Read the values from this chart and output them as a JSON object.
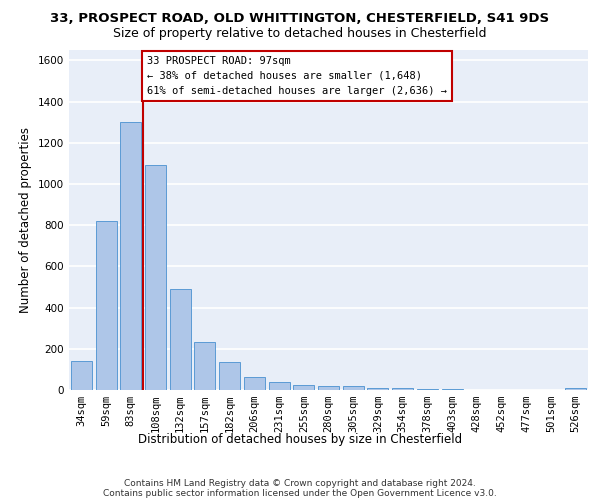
{
  "title_line1": "33, PROSPECT ROAD, OLD WHITTINGTON, CHESTERFIELD, S41 9DS",
  "title_line2": "Size of property relative to detached houses in Chesterfield",
  "xlabel": "Distribution of detached houses by size in Chesterfield",
  "ylabel": "Number of detached properties",
  "bar_labels": [
    "34sqm",
    "59sqm",
    "83sqm",
    "108sqm",
    "132sqm",
    "157sqm",
    "182sqm",
    "206sqm",
    "231sqm",
    "255sqm",
    "280sqm",
    "305sqm",
    "329sqm",
    "354sqm",
    "378sqm",
    "403sqm",
    "428sqm",
    "452sqm",
    "477sqm",
    "501sqm",
    "526sqm"
  ],
  "bar_values": [
    140,
    820,
    1300,
    1090,
    490,
    235,
    135,
    65,
    40,
    25,
    20,
    20,
    10,
    8,
    5,
    3,
    2,
    1,
    1,
    0,
    10
  ],
  "bar_color": "#aec6e8",
  "bar_edge_color": "#5b9bd5",
  "background_color": "#e8eef8",
  "grid_color": "#ffffff",
  "vline_color": "#c00000",
  "annotation_text": "33 PROSPECT ROAD: 97sqm\n← 38% of detached houses are smaller (1,648)\n61% of semi-detached houses are larger (2,636) →",
  "annotation_box_color": "#c00000",
  "ylim": [
    0,
    1650
  ],
  "yticks": [
    0,
    200,
    400,
    600,
    800,
    1000,
    1200,
    1400,
    1600
  ],
  "footer_line1": "Contains HM Land Registry data © Crown copyright and database right 2024.",
  "footer_line2": "Contains public sector information licensed under the Open Government Licence v3.0.",
  "title_fontsize": 9.5,
  "subtitle_fontsize": 9,
  "axis_label_fontsize": 8.5,
  "tick_fontsize": 7.5,
  "annotation_fontsize": 7.5,
  "footer_fontsize": 6.5
}
